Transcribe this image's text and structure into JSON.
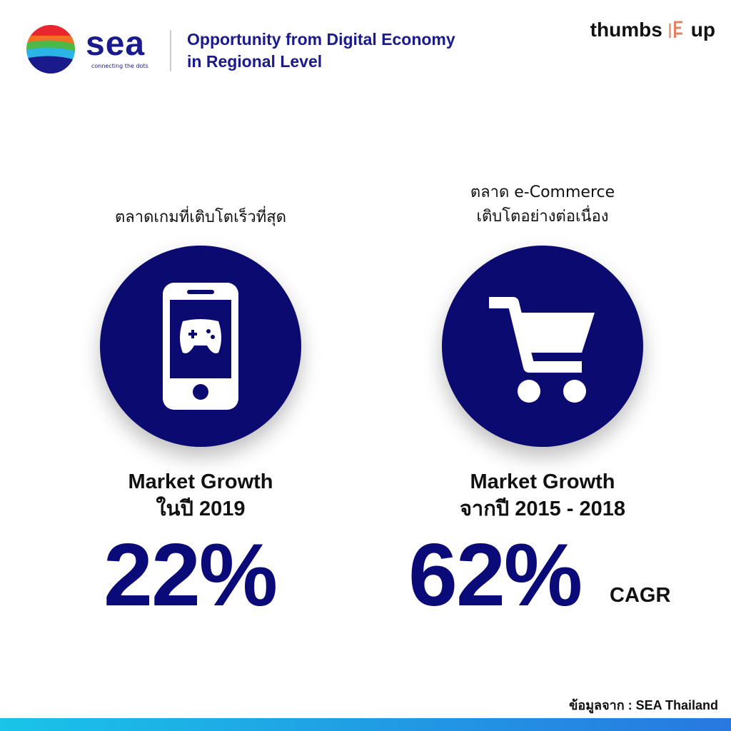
{
  "header": {
    "logo_text": "sea",
    "logo_tagline": "connecting the dots",
    "title_lines": [
      "Opportunity from Digital Economy",
      "in Regional Level"
    ],
    "brand_left": "thumbs",
    "brand_right": "up"
  },
  "panels": [
    {
      "caption_lines": [
        "ตลาดเกมที่เติบโตเร็วที่สุด"
      ],
      "label_lines": [
        "Market Growth",
        "ในปี 2019"
      ],
      "figure": "22%"
    },
    {
      "caption_lines": [
        "ตลาด e-Commerce",
        "เติบโตอย่างต่อเนื่อง"
      ],
      "label_lines": [
        "Market Growth",
        "จากปี 2015 - 2018"
      ],
      "figure": "62%",
      "figure_suffix": "CAGR"
    }
  ],
  "footer": {
    "source": "ข้อมูลจาก : SEA Thailand"
  }
}
